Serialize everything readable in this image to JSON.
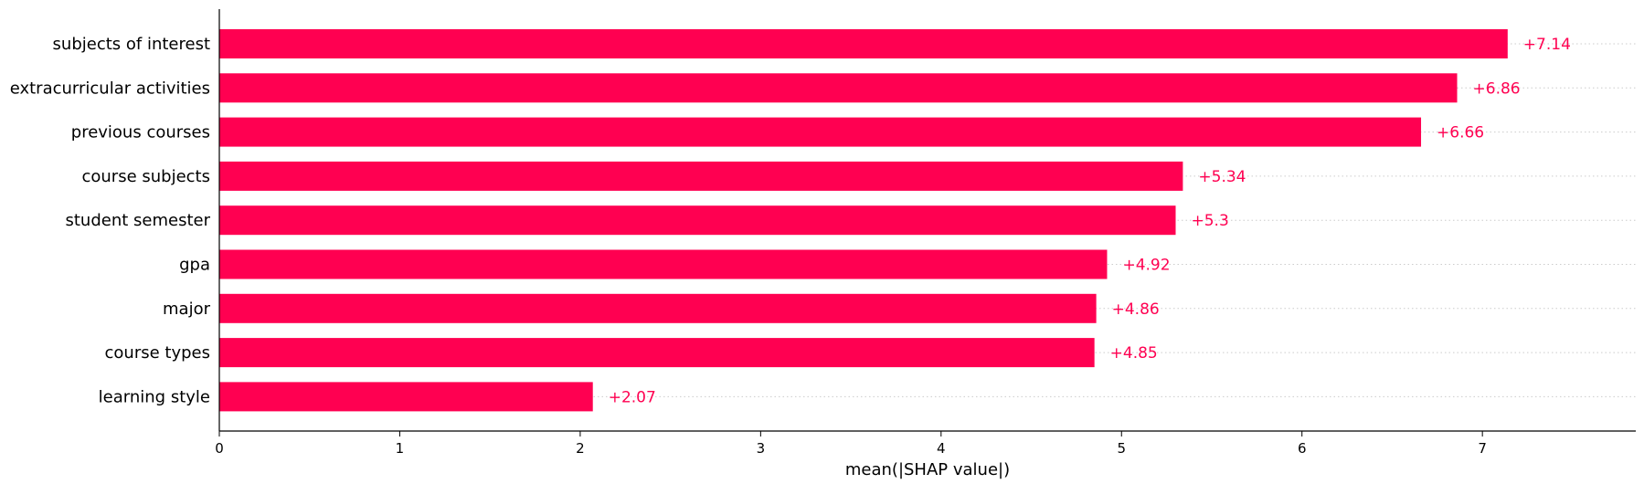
{
  "chart_data": {
    "type": "bar",
    "orientation": "horizontal",
    "categories": [
      "subjects of interest",
      "extracurricular activities",
      "previous courses",
      "course subjects",
      "student semester",
      "gpa",
      "major",
      "course types",
      "learning style"
    ],
    "values": [
      7.14,
      6.86,
      6.66,
      5.34,
      5.3,
      4.92,
      4.86,
      4.85,
      2.07
    ],
    "value_labels": [
      "+7.14",
      "+6.86",
      "+6.66",
      "+5.34",
      "+5.3",
      "+4.92",
      "+4.86",
      "+4.85",
      "+2.07"
    ],
    "xlabel": "mean(|SHAP value|)",
    "xticks": [
      0,
      1,
      2,
      3,
      4,
      5,
      6,
      7
    ],
    "xtick_labels": [
      "0",
      "1",
      "2",
      "3",
      "4",
      "5",
      "6",
      "7"
    ],
    "xlim": [
      0,
      7.85
    ],
    "bar_color": "#ff0051",
    "grid": "dotted guide lines per bar"
  }
}
